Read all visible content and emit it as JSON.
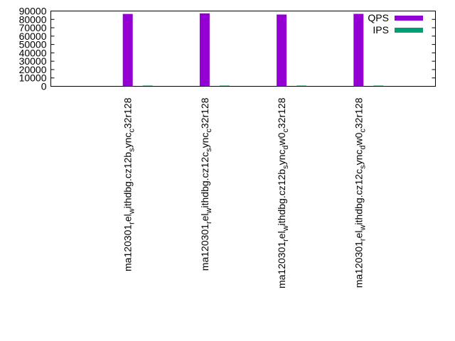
{
  "chart_data": {
    "type": "bar",
    "title": "",
    "xlabel": "",
    "ylabel": "",
    "ylim": [
      0,
      90000
    ],
    "yticks": [
      "0",
      "10000",
      "20000",
      "30000",
      "40000",
      "50000",
      "60000",
      "70000",
      "80000",
      "90000"
    ],
    "categories": [
      {
        "base": "ma120301",
        "parts": [
          [
            "r",
            "sub"
          ],
          [
            "el",
            ""
          ],
          [
            "w",
            "sub"
          ],
          [
            "ithdbg.cz12b",
            ""
          ],
          [
            "s",
            "sub"
          ],
          [
            "ync",
            ""
          ],
          [
            "c",
            "sub"
          ],
          [
            "32r128",
            ""
          ]
        ]
      },
      {
        "base": "ma120301",
        "parts": [
          [
            "r",
            "sub"
          ],
          [
            "el",
            ""
          ],
          [
            "w",
            "sub"
          ],
          [
            "ithdbg.cz12c",
            ""
          ],
          [
            "s",
            "sub"
          ],
          [
            "ync",
            ""
          ],
          [
            "c",
            "sub"
          ],
          [
            "32r128",
            ""
          ]
        ]
      },
      {
        "base": "ma120301",
        "parts": [
          [
            "r",
            "sub"
          ],
          [
            "el",
            ""
          ],
          [
            "w",
            "sub"
          ],
          [
            "ithdbg.cz12b",
            ""
          ],
          [
            "s",
            "sub"
          ],
          [
            "ync",
            ""
          ],
          [
            "d",
            "sub"
          ],
          [
            "w0",
            ""
          ],
          [
            "c",
            "sub"
          ],
          [
            "32r128",
            ""
          ]
        ]
      },
      {
        "base": "ma120301",
        "parts": [
          [
            "r",
            "sub"
          ],
          [
            "el",
            ""
          ],
          [
            "w",
            "sub"
          ],
          [
            "ithdbg.cz12c",
            ""
          ],
          [
            "s",
            "sub"
          ],
          [
            "ync",
            ""
          ],
          [
            "d",
            "sub"
          ],
          [
            "w0",
            ""
          ],
          [
            "c",
            "sub"
          ],
          [
            "32r128",
            ""
          ]
        ]
      }
    ],
    "series": [
      {
        "name": "QPS",
        "color": "#9400d3",
        "values": [
          86500,
          87200,
          85800,
          86600
        ]
      },
      {
        "name": "IPS",
        "color": "#009e73",
        "values": [
          500,
          500,
          500,
          500
        ]
      }
    ],
    "legend_position": "top-right",
    "grid": false
  }
}
